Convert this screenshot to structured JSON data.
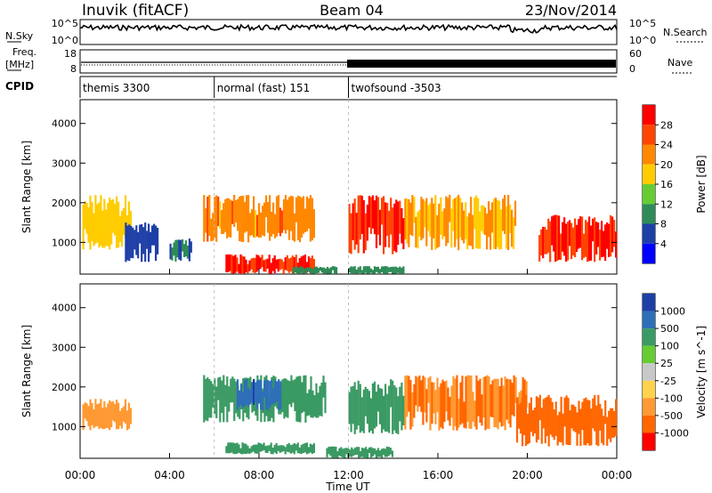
{
  "header": {
    "station": "Inuvik (fitACF)",
    "beam": "Beam 04",
    "date": "23/Nov/2014"
  },
  "noise_panel": {
    "left_label": "N.Sky",
    "right_label": "N.Search",
    "ticks_left": [
      "10^5",
      "10^0"
    ],
    "ticks_right": [
      "10^5",
      "10^0"
    ]
  },
  "freq_panel": {
    "left_label_1": "Freq.",
    "left_label_2": "[MHz]",
    "right_label": "Nave",
    "ticks_left": [
      "18",
      "8"
    ],
    "ticks_right": [
      "60",
      "0"
    ]
  },
  "cpid": {
    "label": "CPID",
    "modes": [
      {
        "name": "themis 3300",
        "start_hour": 0,
        "end_hour": 6
      },
      {
        "name": "normal (fast) 151",
        "start_hour": 6,
        "end_hour": 12
      },
      {
        "name": "twofsound -3503",
        "start_hour": 12,
        "end_hour": 24
      }
    ]
  },
  "colors": {
    "power": [
      "#0000ff",
      "#1e3fa8",
      "#2e8b57",
      "#66cc33",
      "#ffcc00",
      "#ff8800",
      "#ff4400",
      "#ff0000"
    ],
    "velocity": [
      "#1e3fa8",
      "#2f6fb8",
      "#3a9a63",
      "#66cc33",
      "#c8c8c8",
      "#ffd24d",
      "#ff9933",
      "#ff6600",
      "#ff0000"
    ]
  },
  "chart_data": [
    {
      "type": "heatmap",
      "panel": "power",
      "xlabel": "",
      "ylabel": "Slant Range [km]",
      "xlim": [
        0,
        24
      ],
      "ylim": [
        200,
        4600
      ],
      "y_ticks": [
        "1000",
        "2000",
        "3000",
        "4000"
      ],
      "colorbar": {
        "label": "Power [dB]",
        "ticks": [
          "4",
          "8",
          "12",
          "16",
          "20",
          "24",
          "28"
        ],
        "range": [
          0,
          32
        ]
      },
      "regions": [
        {
          "x": [
            0.1,
            2.3
          ],
          "y": [
            800,
            2200
          ],
          "value": 18
        },
        {
          "x": [
            2.0,
            3.5
          ],
          "y": [
            500,
            1500
          ],
          "value": 6
        },
        {
          "x": [
            4.0,
            5.0
          ],
          "y": [
            500,
            1100
          ],
          "value": 8
        },
        {
          "x": [
            5.5,
            10.5
          ],
          "y": [
            1000,
            2200
          ],
          "value": 22
        },
        {
          "x": [
            6.5,
            10.5
          ],
          "y": [
            200,
            700
          ],
          "value": 28
        },
        {
          "x": [
            9.5,
            11.5
          ],
          "y": [
            200,
            400
          ],
          "value": 10
        },
        {
          "x": [
            12.0,
            14.5
          ],
          "y": [
            700,
            2200
          ],
          "value": 28
        },
        {
          "x": [
            12.0,
            14.5
          ],
          "y": [
            200,
            400
          ],
          "value": 10
        },
        {
          "x": [
            14.5,
            19.5
          ],
          "y": [
            800,
            2200
          ],
          "value": 20
        },
        {
          "x": [
            20.5,
            24
          ],
          "y": [
            500,
            1700
          ],
          "value": 28
        }
      ]
    },
    {
      "type": "heatmap",
      "panel": "velocity",
      "xlabel": "Time UT",
      "ylabel": "Slant Range [km]",
      "xlim": [
        0,
        24
      ],
      "ylim": [
        200,
        4600
      ],
      "x_ticks": [
        "00:00",
        "04:00",
        "08:00",
        "12:00",
        "16:00",
        "20:00",
        "00:00"
      ],
      "y_ticks": [
        "1000",
        "2000",
        "3000",
        "4000"
      ],
      "colorbar": {
        "label": "Velocity [m s^-1]",
        "ticks": [
          "1000",
          "500",
          "100",
          "25",
          "-25",
          "-100",
          "-500",
          "-1000"
        ],
        "range": [
          -1000,
          1000
        ]
      },
      "regions": [
        {
          "x": [
            0.1,
            2.3
          ],
          "y": [
            900,
            1700
          ],
          "value": -400
        },
        {
          "x": [
            5.5,
            11.0
          ],
          "y": [
            1100,
            2300
          ],
          "value": 300
        },
        {
          "x": [
            7.0,
            9.0
          ],
          "y": [
            1400,
            2200
          ],
          "value": 900
        },
        {
          "x": [
            6.5,
            10.5
          ],
          "y": [
            300,
            600
          ],
          "value": 120
        },
        {
          "x": [
            12.0,
            14.5
          ],
          "y": [
            800,
            2200
          ],
          "value": 200
        },
        {
          "x": [
            14.5,
            20.0
          ],
          "y": [
            900,
            2300
          ],
          "value": -500
        },
        {
          "x": [
            19.5,
            24
          ],
          "y": [
            500,
            1800
          ],
          "value": -700
        },
        {
          "x": [
            11.0,
            14.0
          ],
          "y": [
            200,
            500
          ],
          "value": 150
        }
      ]
    }
  ]
}
